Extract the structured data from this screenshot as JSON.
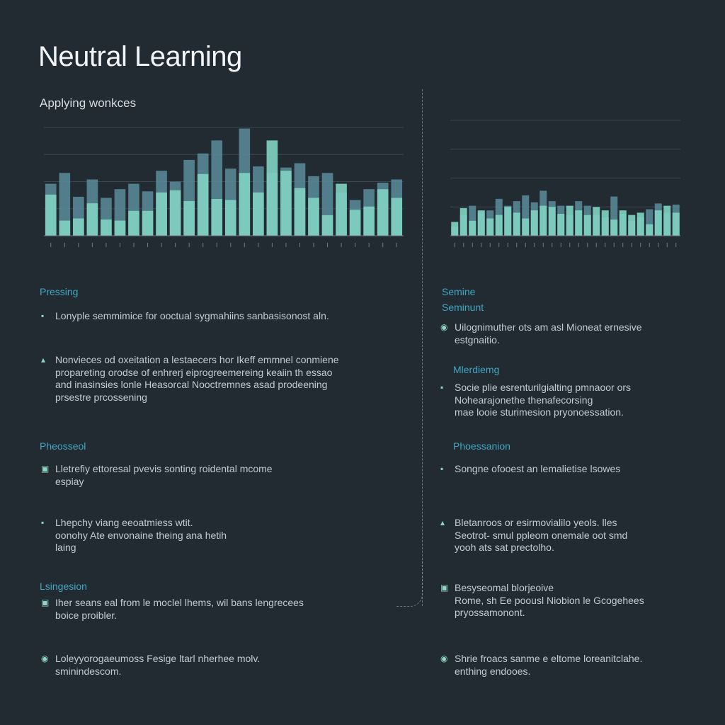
{
  "header": {
    "title": "Neutral Learning",
    "subtitle": "Applying wonkces"
  },
  "colors": {
    "background": "#232b32",
    "bar_light": "#7fd3c2",
    "bar_dark": "#5a8c9a",
    "heading_accent": "#3fa7c4"
  },
  "chart_data": [
    {
      "type": "bar",
      "id": "left-chart",
      "categories": [
        "1",
        "2",
        "3",
        "4",
        "5",
        "6",
        "7",
        "8",
        "9",
        "10",
        "11",
        "12",
        "13",
        "14",
        "15",
        "16",
        "17",
        "18",
        "19",
        "20",
        "21",
        "22",
        "23",
        "24",
        "25",
        "26"
      ],
      "series": [
        {
          "values": [
            48,
            58,
            36,
            52,
            35,
            43,
            48,
            41,
            60,
            50,
            70,
            76,
            88,
            62,
            99,
            64,
            58,
            63,
            67,
            55,
            58,
            40,
            33,
            43,
            49,
            52
          ]
        },
        {
          "values": [
            38,
            14,
            16,
            30,
            15,
            14,
            23,
            23,
            40,
            42,
            32,
            57,
            34,
            33,
            58,
            40,
            88,
            60,
            44,
            35,
            19,
            48,
            24,
            27,
            43,
            35
          ]
        }
      ],
      "ylim": [
        0,
        100
      ],
      "grid": true
    },
    {
      "type": "bar",
      "id": "right-chart",
      "categories": [
        "1",
        "2",
        "3",
        "4",
        "5",
        "6",
        "7",
        "8",
        "9",
        "10",
        "11",
        "12",
        "13",
        "14",
        "15",
        "16",
        "17",
        "18",
        "19",
        "20",
        "21",
        "22",
        "23",
        "24",
        "25",
        "26"
      ],
      "series": [
        {
          "values": [
            8,
            18,
            26,
            20,
            22,
            32,
            26,
            30,
            35,
            29,
            39,
            30,
            26,
            18,
            30,
            26,
            18,
            16,
            34,
            19,
            13,
            16,
            23,
            28,
            20,
            27
          ]
        },
        {
          "values": [
            12,
            24,
            13,
            22,
            15,
            18,
            25,
            20,
            15,
            22,
            26,
            25,
            19,
            26,
            22,
            18,
            25,
            22,
            14,
            22,
            18,
            20,
            10,
            22,
            26,
            20
          ]
        }
      ],
      "ylim": [
        0,
        100
      ],
      "grid": true
    }
  ],
  "left_column": {
    "sections": [
      {
        "heading": "Pressing",
        "items": [
          {
            "icon": "bullet-icon",
            "lines": [
              "Lonyple semmimice for ooctual sygmahiins sanbasisonost aln."
            ]
          },
          {
            "icon": "bullet-icon",
            "lines": [
              "Nonvieces od oxeitation a lestaecers hor Ikeff emmnel conmiene",
              "propareting orodse of enhrerj eiprogreemereing keaiin th essao",
              "and inasinsies lonle Heasorcal Nooctremnes asad prodeening",
              "prsestre prcossening"
            ]
          }
        ]
      },
      {
        "heading": "Pheosseol",
        "items": [
          {
            "icon": "square-icon",
            "lines": [
              "Lletrefiy ettoresal pvevis sonting roidental mcome",
              "espiay"
            ]
          },
          {
            "icon": "bullet-icon",
            "lines": [
              "Lhepchy viang eeoatmiess wtit.",
              "oonohy Ate envonaine theing ana hetih",
              "laing"
            ]
          }
        ]
      },
      {
        "heading": "Lsingesion",
        "items": [
          {
            "icon": "square-icon",
            "lines": [
              "Iher seans eal from le moclel lhems, wil bans lengrecees",
              "boice proibler."
            ]
          },
          {
            "icon": "circle-icon",
            "lines": [
              "Loleyyorogaeumoss Fesige ltarl nherhee molv.",
              "sminindescom."
            ]
          }
        ]
      }
    ]
  },
  "right_column": {
    "sections": [
      {
        "heading": "Semine",
        "heading2": "Seminunt",
        "items": [
          {
            "icon": "circle-icon",
            "lines": [
              "Uilognimuther ots am asl Mioneat ernesive",
              "estgnaitio."
            ]
          }
        ]
      },
      {
        "heading": "Mlerdiemg",
        "items": [
          {
            "icon": "bullet-icon",
            "lines": [
              "Socie plie esrenturilgialting pmnaoor ors",
              "Nohearajonethe thenafecorsing",
              "mae looie sturimesion pryonoessation."
            ]
          }
        ]
      },
      {
        "heading": "Phoessanion",
        "items": [
          {
            "icon": "bullet-icon",
            "lines": [
              "Songne ofooest an lemalietise lsowes"
            ]
          },
          {
            "icon": "bullet-icon",
            "lines": [
              "Bletanroos or esirmovialilo yeols. lles",
              "Seotrot- smul ppleom onemale oot smd",
              "yooh ats sat prectolho."
            ]
          }
        ]
      },
      {
        "heading": "",
        "items": [
          {
            "icon": "square-icon",
            "lines": [
              "Besyseomal blorjeoive",
              "Rome, sh Ee poousl Niobion le Gcogehees",
              "pryossamonont."
            ]
          },
          {
            "icon": "circle-icon",
            "lines": [
              "Shrie froacs sanme e eltome loreanitclahe.",
              "enthing endooes."
            ]
          }
        ]
      }
    ]
  }
}
